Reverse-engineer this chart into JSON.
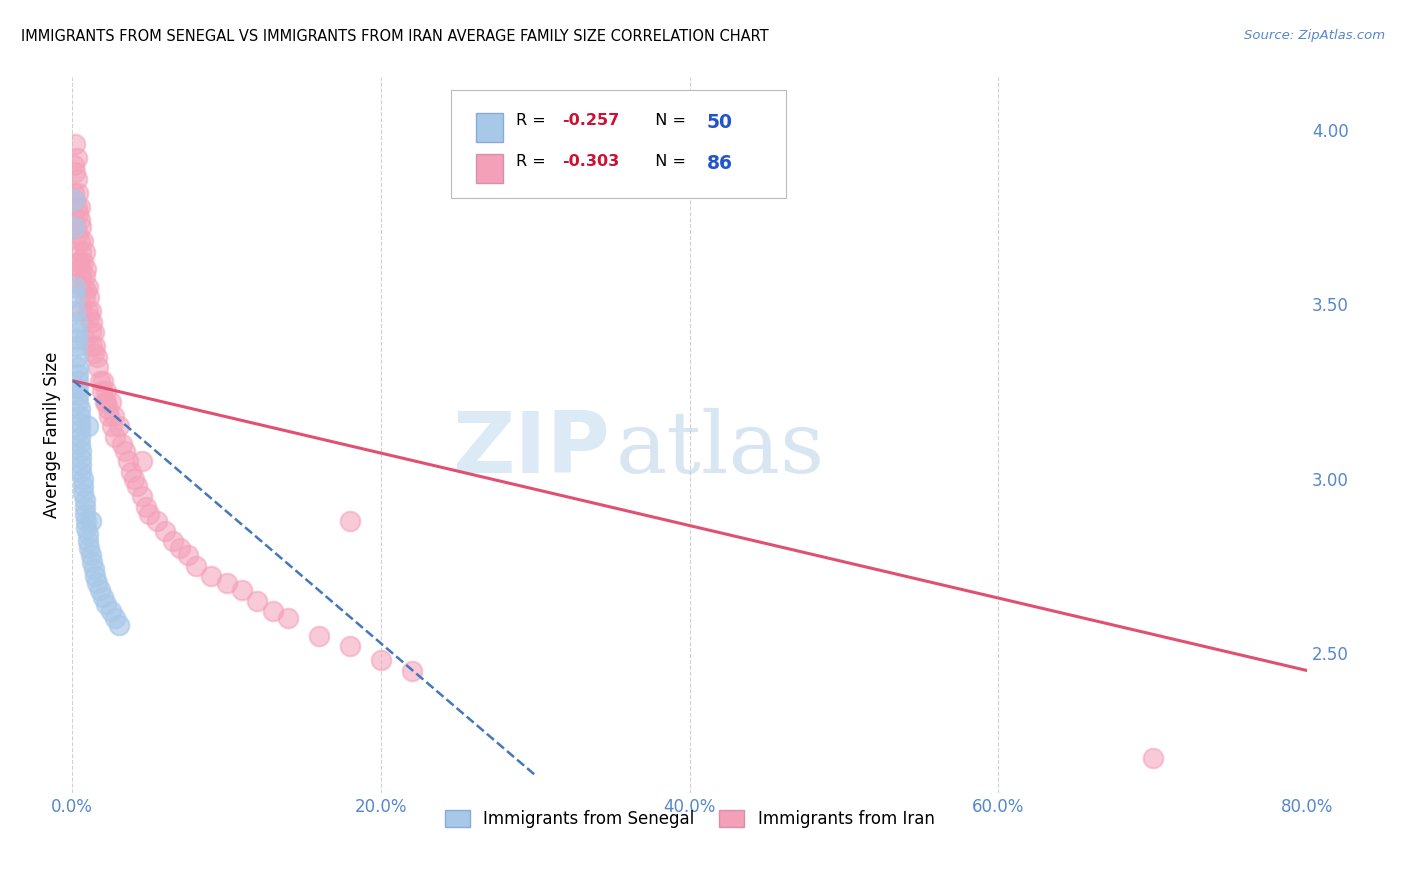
{
  "title": "IMMIGRANTS FROM SENEGAL VS IMMIGRANTS FROM IRAN AVERAGE FAMILY SIZE CORRELATION CHART",
  "source": "Source: ZipAtlas.com",
  "ylabel": "Average Family Size",
  "right_yticks": [
    2.5,
    3.0,
    3.5,
    4.0
  ],
  "watermark_zip": "ZIP",
  "watermark_atlas": "atlas",
  "senegal_label": "Immigrants from Senegal",
  "iran_label": "Immigrants from Iran",
  "senegal_R": -0.257,
  "senegal_N": 50,
  "iran_R": -0.303,
  "iran_N": 86,
  "senegal_dot_color": "#a8c8e8",
  "iran_dot_color": "#f4a0b8",
  "senegal_line_color": "#4477bb",
  "iran_line_color": "#e05070",
  "axis_label_color": "#5588cc",
  "background_color": "#ffffff",
  "grid_color": "#cccccc",
  "xlim": [
    0.0,
    0.8
  ],
  "ylim": [
    2.1,
    4.15
  ],
  "xtick_vals": [
    0.0,
    0.2,
    0.4,
    0.6,
    0.8
  ],
  "xtick_labels": [
    "0.0%",
    "20.0%",
    "40.0%",
    "60.0%",
    "80.0%"
  ],
  "senegal_x": [
    0.001,
    0.001,
    0.002,
    0.002,
    0.002,
    0.003,
    0.003,
    0.003,
    0.003,
    0.003,
    0.004,
    0.004,
    0.004,
    0.004,
    0.004,
    0.004,
    0.005,
    0.005,
    0.005,
    0.005,
    0.005,
    0.005,
    0.006,
    0.006,
    0.006,
    0.006,
    0.007,
    0.007,
    0.007,
    0.008,
    0.008,
    0.008,
    0.009,
    0.009,
    0.01,
    0.01,
    0.011,
    0.012,
    0.013,
    0.014,
    0.015,
    0.016,
    0.018,
    0.02,
    0.022,
    0.025,
    0.028,
    0.03,
    0.01,
    0.012
  ],
  "senegal_y": [
    3.8,
    3.72,
    3.55,
    3.52,
    3.48,
    3.45,
    3.42,
    3.4,
    3.38,
    3.35,
    3.32,
    3.3,
    3.28,
    3.26,
    3.24,
    3.22,
    3.2,
    3.18,
    3.16,
    3.14,
    3.12,
    3.1,
    3.08,
    3.06,
    3.04,
    3.02,
    3.0,
    2.98,
    2.96,
    2.94,
    2.92,
    2.9,
    2.88,
    2.86,
    2.84,
    2.82,
    2.8,
    2.78,
    2.76,
    2.74,
    2.72,
    2.7,
    2.68,
    2.66,
    2.64,
    2.62,
    2.6,
    2.58,
    3.15,
    2.88
  ],
  "iran_x": [
    0.001,
    0.001,
    0.002,
    0.002,
    0.002,
    0.003,
    0.003,
    0.003,
    0.004,
    0.004,
    0.004,
    0.005,
    0.005,
    0.005,
    0.005,
    0.006,
    0.006,
    0.006,
    0.007,
    0.007,
    0.007,
    0.008,
    0.008,
    0.008,
    0.009,
    0.009,
    0.01,
    0.01,
    0.011,
    0.011,
    0.012,
    0.012,
    0.013,
    0.013,
    0.014,
    0.014,
    0.015,
    0.016,
    0.017,
    0.018,
    0.019,
    0.02,
    0.021,
    0.022,
    0.023,
    0.024,
    0.025,
    0.026,
    0.027,
    0.028,
    0.03,
    0.032,
    0.034,
    0.036,
    0.038,
    0.04,
    0.042,
    0.045,
    0.048,
    0.05,
    0.055,
    0.06,
    0.065,
    0.07,
    0.075,
    0.08,
    0.09,
    0.1,
    0.11,
    0.12,
    0.13,
    0.14,
    0.16,
    0.18,
    0.2,
    0.22,
    0.003,
    0.004,
    0.006,
    0.008,
    0.002,
    0.006,
    0.7,
    0.045,
    0.022,
    0.18
  ],
  "iran_y": [
    3.9,
    3.82,
    3.96,
    3.88,
    3.8,
    3.92,
    3.86,
    3.78,
    3.82,
    3.76,
    3.7,
    3.78,
    3.74,
    3.68,
    3.62,
    3.72,
    3.65,
    3.58,
    3.68,
    3.62,
    3.55,
    3.65,
    3.58,
    3.52,
    3.6,
    3.54,
    3.55,
    3.48,
    3.52,
    3.46,
    3.48,
    3.42,
    3.45,
    3.38,
    3.42,
    3.36,
    3.38,
    3.35,
    3.32,
    3.28,
    3.25,
    3.28,
    3.22,
    3.25,
    3.2,
    3.18,
    3.22,
    3.15,
    3.18,
    3.12,
    3.15,
    3.1,
    3.08,
    3.05,
    3.02,
    3.0,
    2.98,
    2.95,
    2.92,
    2.9,
    2.88,
    2.85,
    2.82,
    2.8,
    2.78,
    2.75,
    2.72,
    2.7,
    2.68,
    2.65,
    2.62,
    2.6,
    2.55,
    2.52,
    2.48,
    2.45,
    3.56,
    3.62,
    3.48,
    3.4,
    3.72,
    3.6,
    2.2,
    3.05,
    3.22,
    2.88
  ],
  "iran_line_x0": 0.001,
  "iran_line_x1": 0.8,
  "iran_line_y0": 3.28,
  "iran_line_y1": 2.45,
  "senegal_line_x0": 0.001,
  "senegal_line_x1": 0.3,
  "senegal_line_y0": 3.28,
  "senegal_line_y1": 2.15
}
